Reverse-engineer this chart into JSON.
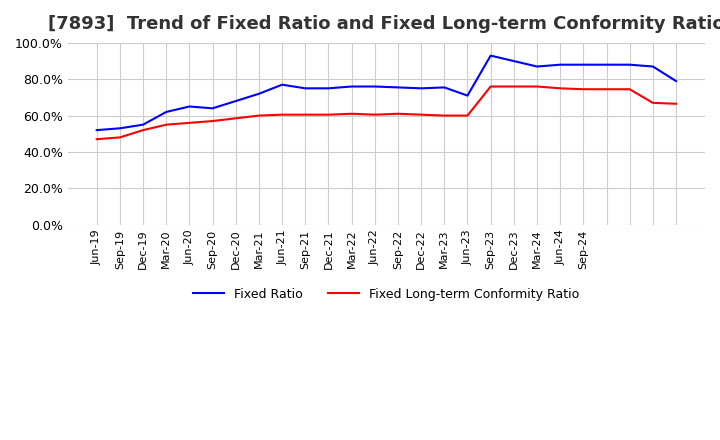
{
  "title": "[7893]  Trend of Fixed Ratio and Fixed Long-term Conformity Ratio",
  "title_fontsize": 13,
  "fixed_ratio": {
    "label": "Fixed Ratio",
    "color": "#0000FF",
    "values": [
      52.0,
      53.0,
      55.0,
      62.0,
      65.0,
      64.0,
      68.0,
      72.0,
      77.0,
      75.0,
      75.0,
      76.0,
      76.0,
      75.5,
      75.0,
      75.5,
      71.0,
      93.0,
      90.0,
      87.0,
      88.0,
      88.0,
      88.0,
      88.0,
      87.0,
      79.0
    ]
  },
  "fixed_lt_ratio": {
    "label": "Fixed Long-term Conformity Ratio",
    "color": "#FF0000",
    "values": [
      47.0,
      48.0,
      52.0,
      55.0,
      56.0,
      57.0,
      58.5,
      60.0,
      60.5,
      60.5,
      60.5,
      61.0,
      60.5,
      61.0,
      60.5,
      60.0,
      60.0,
      76.0,
      76.0,
      76.0,
      75.0,
      74.5,
      74.5,
      74.5,
      67.0,
      66.5
    ]
  },
  "x_labels": [
    "Jun-19",
    "Sep-19",
    "Dec-19",
    "Mar-20",
    "Jun-20",
    "Sep-20",
    "Dec-20",
    "Mar-21",
    "Jun-21",
    "Sep-21",
    "Dec-21",
    "Mar-22",
    "Jun-22",
    "Sep-22",
    "Dec-22",
    "Mar-23",
    "Jun-23",
    "Sep-23",
    "Dec-23",
    "Mar-24",
    "Jun-24",
    "Sep-24",
    "",
    "",
    "",
    ""
  ],
  "ylim": [
    0,
    100
  ],
  "yticks": [
    0,
    20,
    40,
    60,
    80,
    100
  ],
  "ytick_labels": [
    "0.0%",
    "20.0%",
    "40.0%",
    "60.0%",
    "80.0%",
    "100.0%"
  ],
  "grid_color": "#CCCCCC",
  "background_color": "#FFFFFF",
  "linewidth": 1.5
}
